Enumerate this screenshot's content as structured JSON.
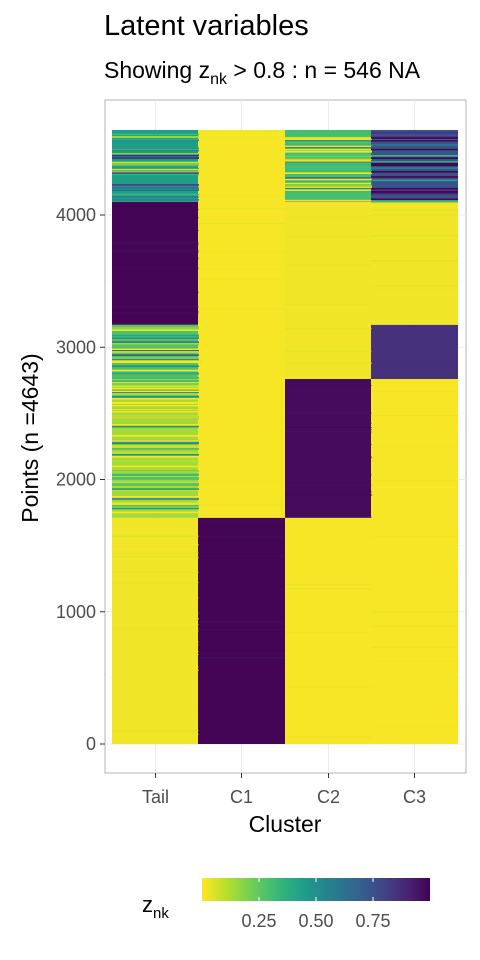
{
  "title": "Latent variables",
  "subtitle": {
    "prefix": "Showing z",
    "subscript": "nk",
    "suffix": "  > 0.8 : n = 546  NA"
  },
  "colors": {
    "viridis": [
      "#440154",
      "#482878",
      "#3e4a89",
      "#31688e",
      "#26828e",
      "#1f9e89",
      "#35b779",
      "#6ece58",
      "#b5de2b",
      "#fde725"
    ]
  },
  "chart_data": {
    "type": "heatmap",
    "xlabel": "Cluster",
    "ylabel": "Points (n =4643)",
    "categories": [
      "Tail",
      "C1",
      "C2",
      "C3"
    ],
    "y_ticks": [
      0,
      1000,
      2000,
      3000,
      4000
    ],
    "ylim": [
      0,
      4643
    ],
    "grid": true,
    "legend": {
      "position": "bottom",
      "title_main": "z",
      "title_sub": "nk",
      "labels": [
        "0.25",
        "0.50",
        "0.75"
      ],
      "range": [
        0,
        1
      ],
      "colorscale": "viridis (reversed: low = yellow, high = purple)"
    },
    "blocks": [
      {
        "cluster": "Tail",
        "y_start": 0,
        "y_end": 1710,
        "value": 0.02
      },
      {
        "cluster": "Tail",
        "y_start": 1710,
        "y_end": 2760,
        "value": 0.14
      },
      {
        "cluster": "Tail",
        "y_start": 2760,
        "y_end": 3170,
        "value": 0.28
      },
      {
        "cluster": "Tail",
        "y_start": 3170,
        "y_end": 4100,
        "value": 0.99
      },
      {
        "cluster": "Tail",
        "y_start": 4100,
        "y_end": 4643,
        "value": 0.45
      },
      {
        "cluster": "C1",
        "y_start": 0,
        "y_end": 1710,
        "value": 0.99
      },
      {
        "cluster": "C1",
        "y_start": 1710,
        "y_end": 4643,
        "value": 0.01
      },
      {
        "cluster": "C2",
        "y_start": 0,
        "y_end": 1710,
        "value": 0.01
      },
      {
        "cluster": "C2",
        "y_start": 1710,
        "y_end": 2760,
        "value": 0.97
      },
      {
        "cluster": "C2",
        "y_start": 2760,
        "y_end": 4100,
        "value": 0.02
      },
      {
        "cluster": "C2",
        "y_start": 4100,
        "y_end": 4643,
        "value": 0.3
      },
      {
        "cluster": "C3",
        "y_start": 0,
        "y_end": 2760,
        "value": 0.01
      },
      {
        "cluster": "C3",
        "y_start": 2760,
        "y_end": 3170,
        "value": 0.86
      },
      {
        "cluster": "C3",
        "y_start": 3170,
        "y_end": 4100,
        "value": 0.02
      },
      {
        "cluster": "C3",
        "y_start": 4100,
        "y_end": 4643,
        "value": 0.75
      }
    ]
  }
}
